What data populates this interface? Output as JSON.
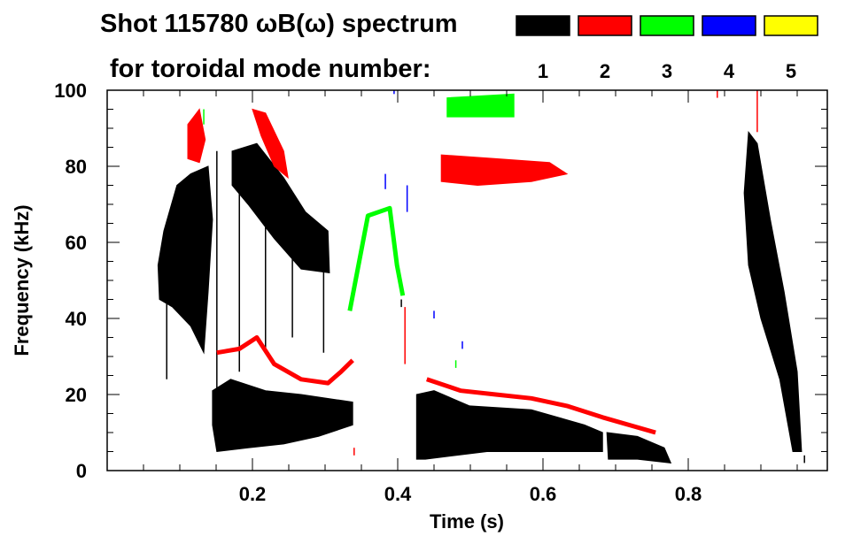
{
  "chart_data": {
    "type": "heatmap",
    "title": "Shot 115780 ωB(ω) spectrum",
    "subtitle": "for toroidal mode number:",
    "xlabel": "Time (s)",
    "ylabel": "Frequency (kHz)",
    "xlim": [
      0,
      1.0
    ],
    "ylim": [
      0,
      100
    ],
    "xticks": [
      0.2,
      0.4,
      0.6,
      0.8
    ],
    "xtick_labels": [
      "0.2",
      "0.4",
      "0.6",
      "0.8"
    ],
    "x_minor_step": 0.05,
    "yticks": [
      0,
      20,
      40,
      60,
      80,
      100
    ],
    "ytick_labels": [
      "0",
      "20",
      "40",
      "60",
      "80",
      "100"
    ],
    "y_minor_step": 5,
    "legend_placement": "top-right",
    "legend": [
      {
        "label": "1",
        "color": "#000000"
      },
      {
        "label": "2",
        "color": "#ff0000"
      },
      {
        "label": "3",
        "color": "#00ff00"
      },
      {
        "label": "4",
        "color": "#0000ff"
      },
      {
        "label": "5",
        "color": "#ffff00"
      }
    ],
    "series": [
      {
        "name": "n=1",
        "color": "#000000",
        "regions": [
          [
            [
              0.07,
              54
            ],
            [
              0.078,
              63
            ],
            [
              0.096,
              75
            ],
            [
              0.115,
              78
            ],
            [
              0.139,
              80
            ],
            [
              0.145,
              66
            ],
            [
              0.139,
              47
            ],
            [
              0.133,
              31
            ],
            [
              0.115,
              38
            ],
            [
              0.09,
              43
            ],
            [
              0.072,
              45
            ]
          ],
          [
            [
              0.172,
              84
            ],
            [
              0.206,
              86
            ],
            [
              0.243,
              77
            ],
            [
              0.273,
              68
            ],
            [
              0.304,
              63
            ],
            [
              0.306,
              52
            ],
            [
              0.267,
              53
            ],
            [
              0.23,
              61
            ],
            [
              0.194,
              70
            ],
            [
              0.172,
              75
            ]
          ],
          [
            [
              0.145,
              21
            ],
            [
              0.17,
              24
            ],
            [
              0.218,
              21
            ],
            [
              0.267,
              20
            ],
            [
              0.338,
              18
            ],
            [
              0.338,
              12
            ],
            [
              0.291,
              9
            ],
            [
              0.243,
              7
            ],
            [
              0.194,
              6
            ],
            [
              0.151,
              5
            ],
            [
              0.145,
              12
            ]
          ],
          [
            [
              0.426,
              20
            ],
            [
              0.45,
              21
            ],
            [
              0.499,
              17
            ],
            [
              0.584,
              16
            ],
            [
              0.657,
              12
            ],
            [
              0.682,
              10
            ],
            [
              0.682,
              5
            ],
            [
              0.61,
              5
            ],
            [
              0.523,
              5
            ],
            [
              0.438,
              3
            ],
            [
              0.426,
              3
            ]
          ],
          [
            [
              0.688,
              10
            ],
            [
              0.73,
              9
            ],
            [
              0.767,
              6
            ],
            [
              0.776,
              2
            ],
            [
              0.73,
              3
            ],
            [
              0.69,
              3
            ]
          ],
          [
            [
              0.883,
              89
            ],
            [
              0.895,
              86
            ],
            [
              0.913,
              66
            ],
            [
              0.932,
              47
            ],
            [
              0.95,
              26
            ],
            [
              0.956,
              5
            ],
            [
              0.944,
              5
            ],
            [
              0.926,
              24
            ],
            [
              0.9,
              40
            ],
            [
              0.883,
              54
            ],
            [
              0.877,
              73
            ]
          ]
        ],
        "tracks": [],
        "streaks": [
          [
            0.082,
            24,
            54
          ],
          [
            0.151,
            14,
            84
          ],
          [
            0.182,
            26,
            84
          ],
          [
            0.218,
            31,
            77
          ],
          [
            0.255,
            35,
            63
          ],
          [
            0.298,
            31,
            63
          ],
          [
            0.405,
            43,
            45
          ],
          [
            0.96,
            2,
            4
          ]
        ]
      },
      {
        "name": "n=2",
        "color": "#ff0000",
        "regions": [
          [
            [
              0.111,
              91
            ],
            [
              0.127,
              95
            ],
            [
              0.135,
              87
            ],
            [
              0.127,
              81
            ],
            [
              0.111,
              82
            ]
          ],
          [
            [
              0.2,
              95
            ],
            [
              0.218,
              94
            ],
            [
              0.243,
              84
            ],
            [
              0.249,
              77
            ],
            [
              0.23,
              80
            ],
            [
              0.212,
              88
            ]
          ],
          [
            [
              0.46,
              83
            ],
            [
              0.535,
              82
            ],
            [
              0.609,
              81
            ],
            [
              0.633,
              78
            ],
            [
              0.584,
              76
            ],
            [
              0.51,
              75
            ],
            [
              0.46,
              76
            ]
          ]
        ],
        "tracks": [
          [
            [
              0.151,
              31
            ],
            [
              0.182,
              32
            ],
            [
              0.206,
              35
            ],
            [
              0.23,
              28
            ],
            [
              0.267,
              24
            ],
            [
              0.304,
              23
            ],
            [
              0.322,
              26
            ],
            [
              0.338,
              29
            ]
          ],
          [
            [
              0.44,
              24
            ],
            [
              0.487,
              21
            ],
            [
              0.535,
              20
            ],
            [
              0.584,
              19
            ],
            [
              0.633,
              17
            ],
            [
              0.682,
              14
            ],
            [
              0.755,
              10
            ]
          ]
        ],
        "streaks": [
          [
            0.41,
            28,
            43
          ],
          [
            0.84,
            98,
            100
          ],
          [
            0.895,
            89,
            100
          ],
          [
            0.34,
            4,
            6
          ]
        ]
      },
      {
        "name": "n=3",
        "color": "#00ff00",
        "regions": [
          [
            [
              0.468,
              98
            ],
            [
              0.56,
              99
            ],
            [
              0.56,
              93
            ],
            [
              0.468,
              93
            ]
          ]
        ],
        "tracks": [
          [
            [
              0.334,
              42
            ],
            [
              0.359,
              67
            ],
            [
              0.389,
              69
            ],
            [
              0.399,
              54
            ],
            [
              0.407,
              46
            ]
          ]
        ],
        "streaks": [
          [
            0.133,
            91,
            95
          ],
          [
            0.48,
            27,
            29
          ]
        ]
      },
      {
        "name": "n=4",
        "color": "#0000ff",
        "regions": [],
        "tracks": [],
        "streaks": [
          [
            0.383,
            74,
            78
          ],
          [
            0.413,
            68,
            75
          ],
          [
            0.45,
            40,
            42
          ],
          [
            0.489,
            32,
            34
          ],
          [
            0.395,
            99,
            100
          ]
        ]
      },
      {
        "name": "n=5",
        "color": "#ffff00",
        "regions": [],
        "tracks": [],
        "streaks": []
      }
    ]
  }
}
